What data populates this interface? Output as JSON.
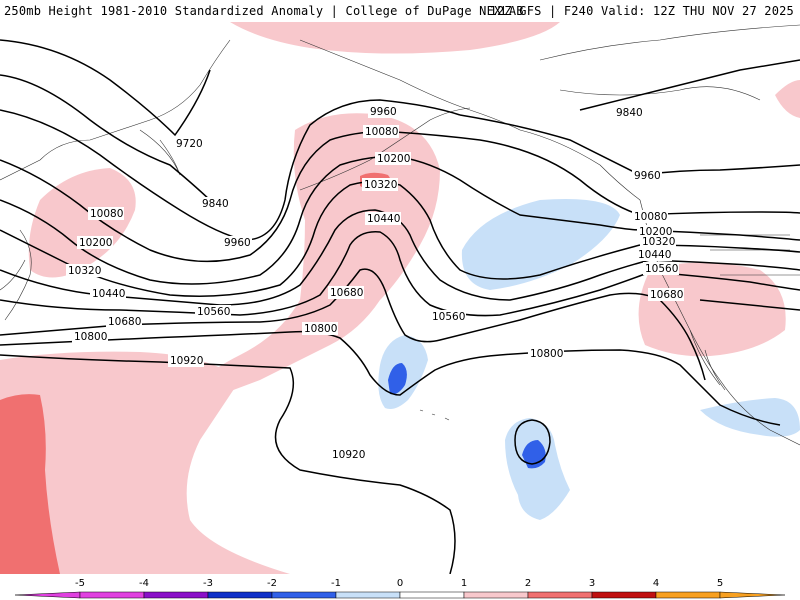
{
  "header": {
    "title_left": "250mb Height 1981-2010 Standardized Anomaly | College of DuPage NEXLAB",
    "title_right": "12Z GFS | F240 Valid: 12Z THU NOV 27 2025"
  },
  "contour_labels": {
    "c9720": "9720",
    "c9840_a": "9840",
    "c9840_b": "9840",
    "c9960_a": "9960",
    "c9960_b": "9960",
    "c9960_c": "9960",
    "c10080_a": "10080",
    "c10080_b": "10080",
    "c10080_c": "10080",
    "c10200_a": "10200",
    "c10200_b": "10200",
    "c10200_c": "10200",
    "c10320_a": "10320",
    "c10320_b": "10320",
    "c10320_c": "10320",
    "c10440_a": "10440",
    "c10440_b": "10440",
    "c10440_c": "10440",
    "c10560_a": "10560",
    "c10560_b": "10560",
    "c10560_c": "10560",
    "c10680_a": "10680",
    "c10680_b": "10680",
    "c10680_c": "10680",
    "c10800_a": "10800",
    "c10800_b": "10800",
    "c10800_c": "10800",
    "c10920_a": "10920",
    "c10920_b": "10920"
  },
  "colorbar": {
    "labels": [
      "-5",
      "-4",
      "-3",
      "-2",
      "-1",
      "0",
      "1",
      "2",
      "3",
      "4",
      "5"
    ],
    "colors": [
      "#e040e0",
      "#8a10c8",
      "#1030c8",
      "#3060e8",
      "#c8e0f8",
      "#ffffff",
      "#f8c8cc",
      "#f07070",
      "#c01010",
      "#f8a020"
    ]
  }
}
